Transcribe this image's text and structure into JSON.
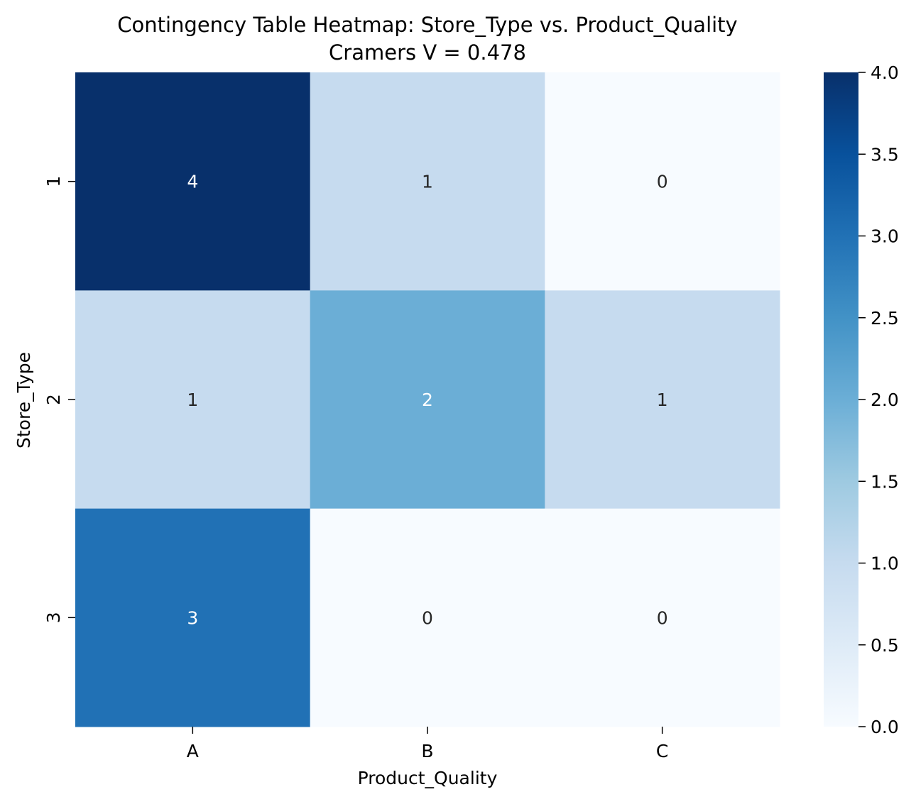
{
  "chart_data": {
    "type": "heatmap",
    "title": "Contingency Table Heatmap: Store_Type vs. Product_Quality",
    "subtitle": "Cramers V = 0.478",
    "xlabel": "Product_Quality",
    "ylabel": "Store_Type",
    "x_categories": [
      "A",
      "B",
      "C"
    ],
    "y_categories": [
      "1",
      "2",
      "3"
    ],
    "values": [
      [
        4,
        1,
        0
      ],
      [
        1,
        2,
        1
      ],
      [
        3,
        0,
        0
      ]
    ],
    "colormap": "Blues",
    "vmin": 0,
    "vmax": 4,
    "colorbar_ticks": [
      "0.0",
      "0.5",
      "1.0",
      "1.5",
      "2.0",
      "2.5",
      "3.0",
      "3.5",
      "4.0"
    ],
    "colors": {
      "cell_0": "#f7fbff",
      "cell_1": "#c6dbef",
      "cell_2": "#6baed6",
      "cell_3": "#2171b5",
      "cell_4": "#08306b",
      "dark_text": "#262626",
      "light_text": "#ffffff"
    }
  }
}
